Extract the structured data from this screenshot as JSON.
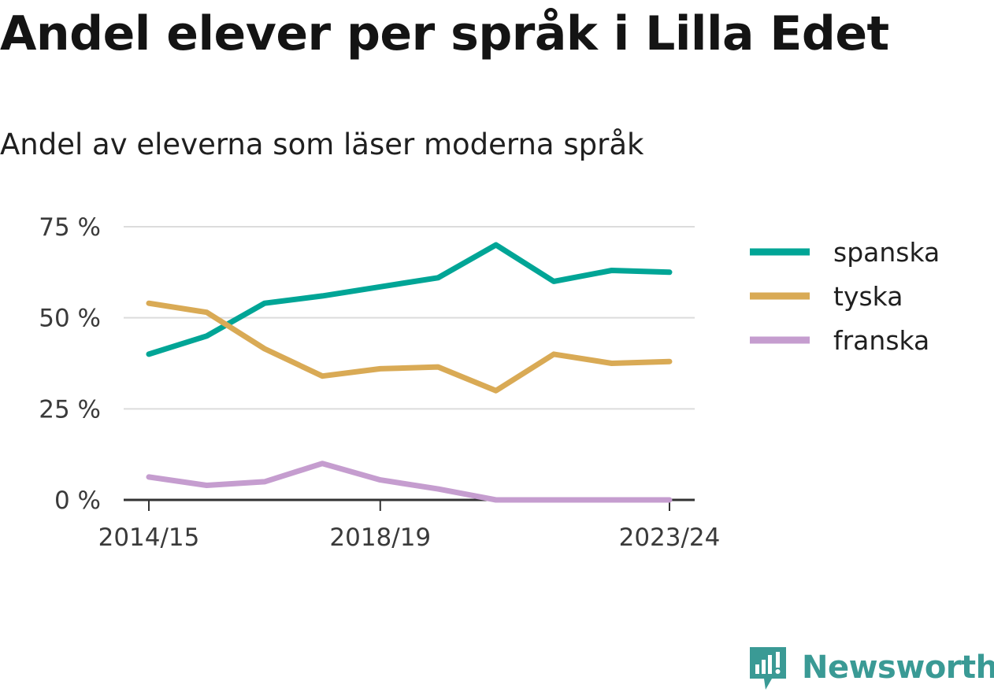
{
  "title": "Andel elever per språk i Lilla Edet",
  "subtitle": "Andel av eleverna som läser moderna språk",
  "brand": {
    "name": "Newsworthy",
    "color": "#3a9a95",
    "icon": "newsworthy-logo-icon"
  },
  "chart_data": {
    "type": "line",
    "x": [
      "2014/15",
      "2015/16",
      "2016/17",
      "2017/18",
      "2018/19",
      "2019/20",
      "2020/21",
      "2021/22",
      "2022/23",
      "2023/24"
    ],
    "x_tick_labels": [
      "2014/15",
      "2018/19",
      "2023/24"
    ],
    "y_tick_values": [
      0,
      25,
      50,
      75
    ],
    "y_tick_labels": [
      "0 %",
      "25 %",
      "50 %",
      "75 %"
    ],
    "ylim": [
      0,
      75
    ],
    "grid": true,
    "legend_position": "right",
    "series": [
      {
        "name": "spanska",
        "color": "#00a596",
        "values": [
          40,
          45,
          54,
          56,
          58.5,
          61,
          70,
          60,
          63,
          62.5
        ]
      },
      {
        "name": "tyska",
        "color": "#d9aa55",
        "values": [
          54,
          51.5,
          41.5,
          34,
          36,
          36.5,
          30,
          40,
          37.5,
          38
        ]
      },
      {
        "name": "franska",
        "color": "#c59dcf",
        "values": [
          6.3,
          4,
          5,
          10,
          5.5,
          3,
          0,
          0,
          0,
          0
        ]
      }
    ]
  }
}
